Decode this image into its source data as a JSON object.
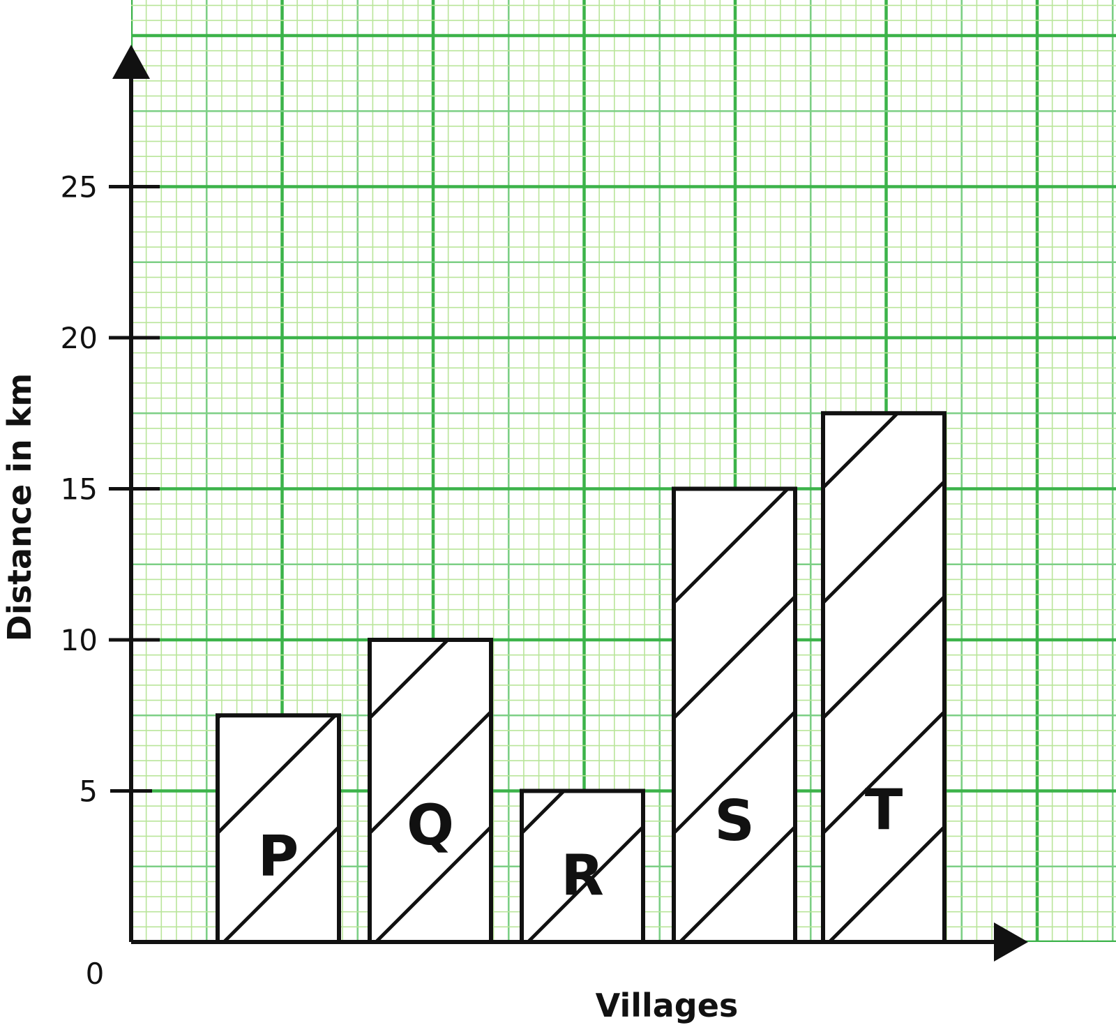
{
  "chart_data": {
    "type": "bar",
    "categories": [
      "P",
      "Q",
      "R",
      "S",
      "T"
    ],
    "values": [
      7.5,
      10,
      5,
      15,
      17.5
    ],
    "xlabel": "Villages",
    "ylabel": "Distance in km",
    "ylim": [
      0,
      30
    ],
    "y_tick_labels": [
      "0",
      "5",
      "10",
      "15",
      "20",
      "25"
    ],
    "grid": true,
    "bar_fill": "hatched",
    "colors": {
      "grid_major": "#3cb34a",
      "grid_mid": "#7ccf85",
      "grid_minor": "#b9e59a",
      "axis": "#111111",
      "bar_fill": "#ffffff",
      "bar_stroke": "#111111"
    }
  }
}
